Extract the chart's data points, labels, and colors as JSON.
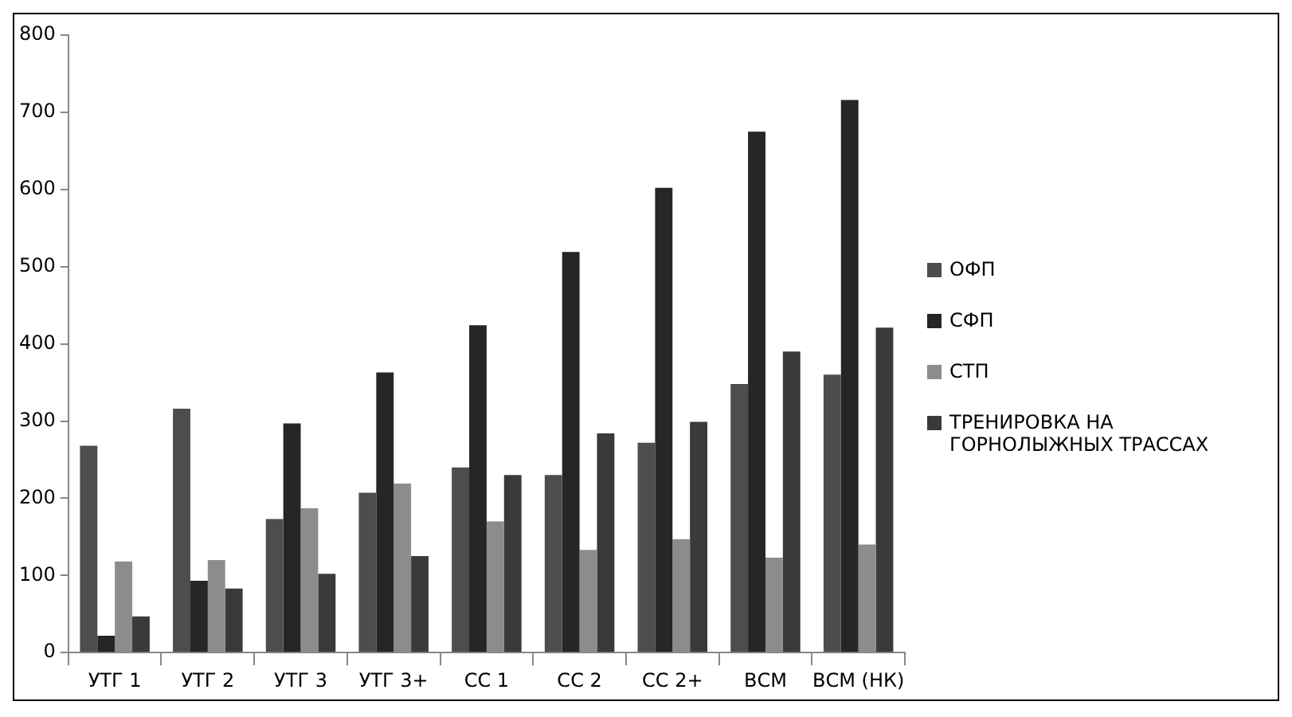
{
  "chart_data": {
    "type": "bar",
    "categories": [
      "УТГ 1",
      "УТГ 2",
      "УТГ 3",
      "УТГ 3+",
      "СС 1",
      "СС 2",
      "СС 2+",
      "ВСМ",
      "ВСМ (НК)"
    ],
    "series": [
      {
        "name": "ОФП",
        "color": "#4d4d4d",
        "values": [
          268,
          316,
          173,
          207,
          240,
          230,
          272,
          348,
          360
        ]
      },
      {
        "name": "СФП",
        "color": "#262626",
        "values": [
          22,
          93,
          297,
          363,
          424,
          519,
          602,
          675,
          716
        ]
      },
      {
        "name": "СТП",
        "color": "#8c8c8c",
        "values": [
          118,
          120,
          187,
          219,
          170,
          133,
          147,
          123,
          140
        ]
      },
      {
        "name": "ТРЕНИРОВКА НА ГОРНОЛЫЖНЫХ ТРАССАХ",
        "color": "#3a3a3a",
        "values": [
          47,
          83,
          102,
          125,
          230,
          284,
          299,
          390,
          421
        ]
      }
    ],
    "ylim": [
      0,
      800
    ],
    "yticks": [
      0,
      100,
      200,
      300,
      400,
      500,
      600,
      700,
      800
    ],
    "grid": false,
    "legend": "right"
  }
}
